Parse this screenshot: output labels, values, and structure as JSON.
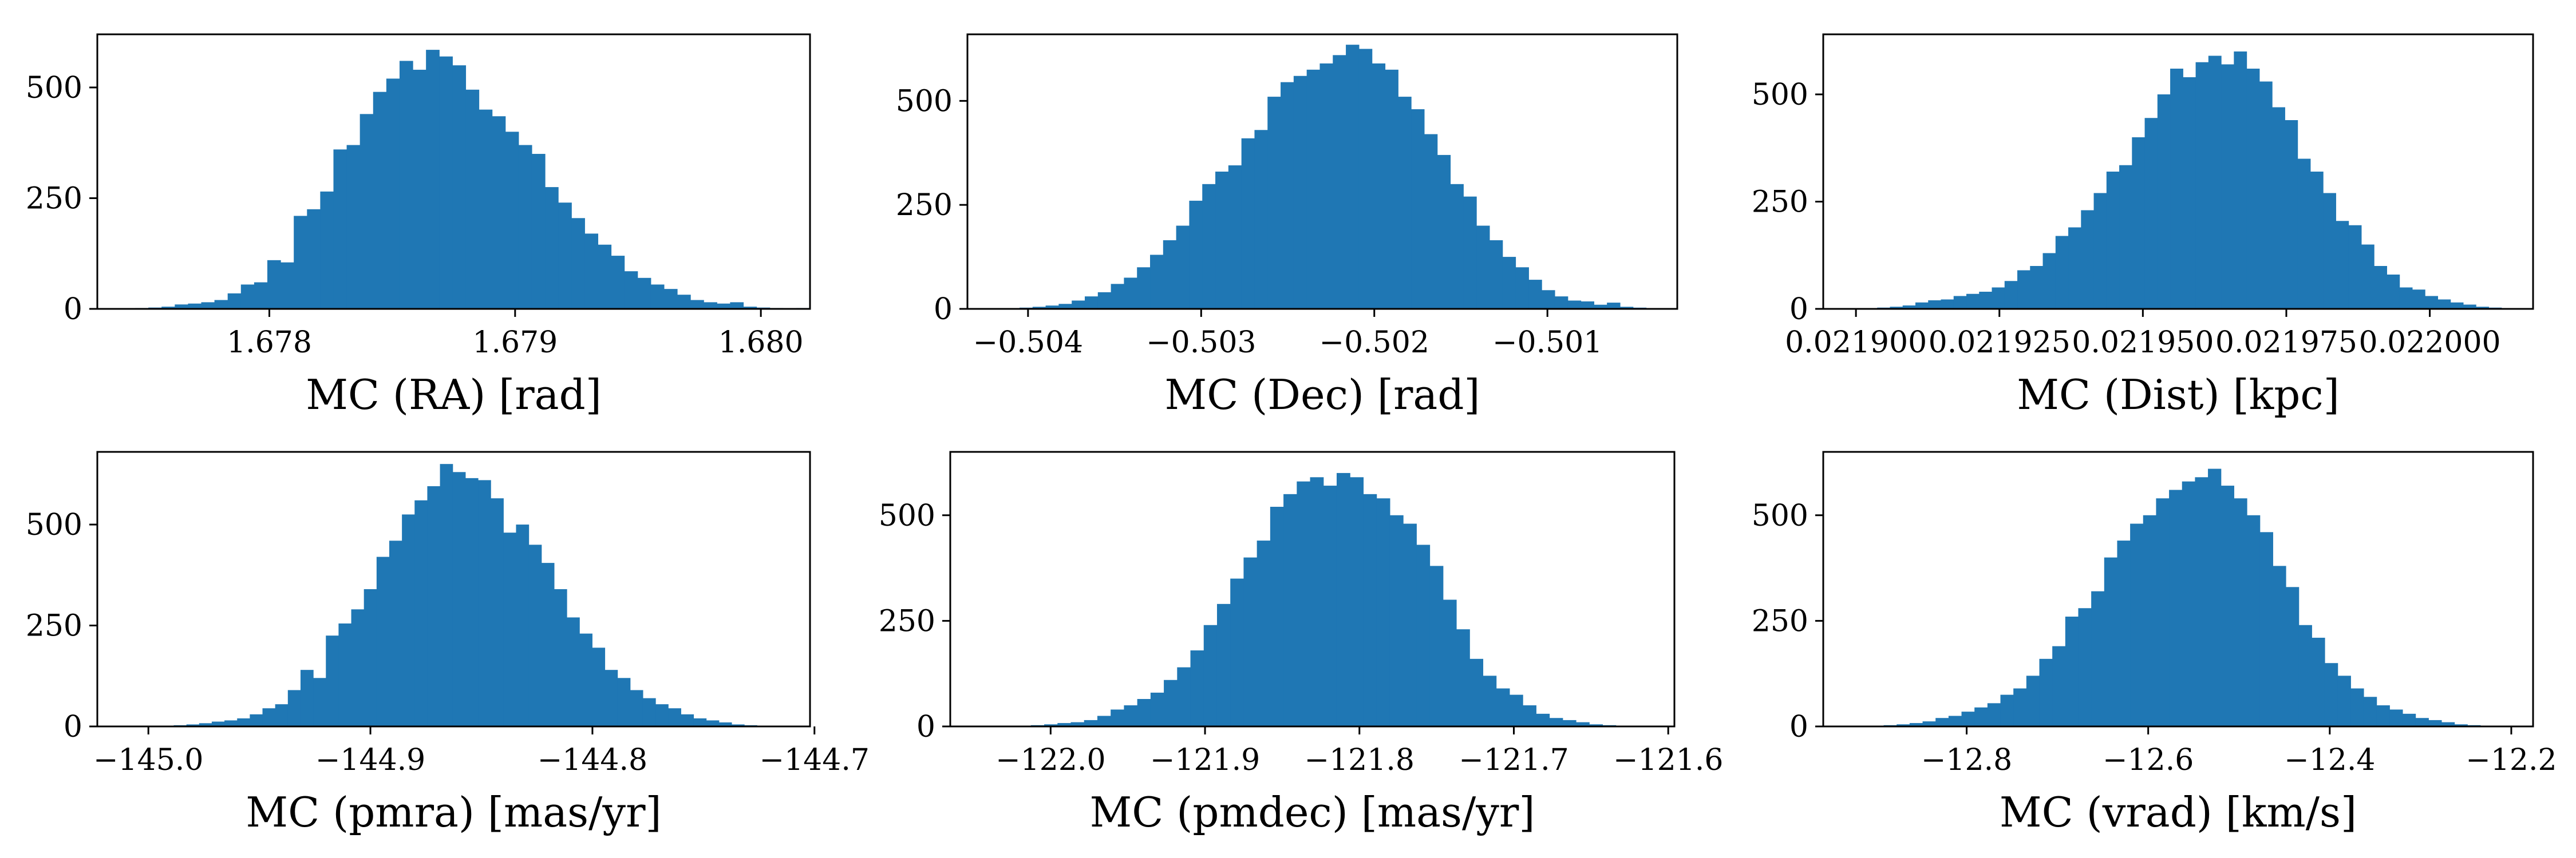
{
  "figure": {
    "bar_color": "#1f77b4",
    "background": "#ffffff"
  },
  "chart_data": [
    {
      "type": "bar",
      "xlabel": "MC (RA) [rad]",
      "ylabel": "",
      "xlim": [
        1.6773,
        1.6802
      ],
      "ylim": [
        0,
        620
      ],
      "xticks": [
        1.678,
        1.679,
        1.68
      ],
      "xtick_labels": [
        "1.678",
        "1.679",
        "1.680"
      ],
      "yticks": [
        0,
        250,
        500
      ],
      "ytick_labels": [
        "0",
        "250",
        "500"
      ],
      "bins": {
        "start": 1.6774,
        "width": 5.38e-05
      },
      "values": [
        1,
        2,
        3,
        5,
        10,
        12,
        15,
        20,
        35,
        55,
        60,
        110,
        105,
        210,
        225,
        265,
        360,
        370,
        440,
        490,
        520,
        560,
        540,
        585,
        570,
        550,
        495,
        450,
        435,
        400,
        370,
        350,
        275,
        240,
        205,
        170,
        145,
        120,
        85,
        70,
        55,
        45,
        32,
        20,
        15,
        12,
        15,
        5,
        3,
        2,
        1,
        2
      ]
    },
    {
      "type": "bar",
      "xlabel": "MC (Dec) [rad]",
      "ylabel": "",
      "xlim": [
        -0.50435,
        -0.50025
      ],
      "ylim": [
        0,
        660
      ],
      "xticks": [
        -0.504,
        -0.503,
        -0.502,
        -0.501
      ],
      "xtick_labels": [
        "−0.504",
        "−0.503",
        "−0.502",
        "−0.501"
      ],
      "yticks": [
        0,
        250,
        500
      ],
      "ytick_labels": [
        "0",
        "250",
        "500"
      ],
      "bins": {
        "start": -0.5042,
        "width": 7.54e-05
      },
      "values": [
        1,
        2,
        3,
        5,
        8,
        12,
        20,
        30,
        40,
        60,
        75,
        100,
        130,
        165,
        200,
        260,
        300,
        330,
        345,
        410,
        430,
        510,
        545,
        560,
        575,
        590,
        610,
        635,
        625,
        590,
        575,
        510,
        480,
        420,
        370,
        300,
        270,
        200,
        165,
        125,
        100,
        70,
        45,
        30,
        20,
        18,
        10,
        15,
        5,
        3,
        2,
        1
      ]
    },
    {
      "type": "bar",
      "xlabel": "MC (Dist) [kpc]",
      "ylabel": "",
      "xlim": [
        0.0218943,
        0.022018
      ],
      "ylim": [
        0,
        640
      ],
      "xticks": [
        0.0219,
        0.021925,
        0.02195,
        0.021975,
        0.022
      ],
      "xtick_labels": [
        "0.021900",
        "0.021925",
        "0.021950",
        "0.021975",
        "0.022000"
      ],
      "yticks": [
        0,
        250,
        500
      ],
      "ytick_labels": [
        "0",
        "250",
        "500"
      ],
      "bins": {
        "start": 0.02189926,
        "width": 2.22e-06
      },
      "values": [
        1,
        2,
        3,
        5,
        8,
        15,
        20,
        22,
        30,
        35,
        40,
        50,
        65,
        90,
        100,
        130,
        170,
        190,
        230,
        270,
        320,
        335,
        400,
        445,
        500,
        560,
        540,
        575,
        590,
        570,
        600,
        560,
        530,
        470,
        440,
        350,
        320,
        270,
        205,
        195,
        150,
        100,
        80,
        50,
        45,
        30,
        22,
        15,
        10,
        5,
        3,
        2,
        1,
        1
      ]
    },
    {
      "type": "bar",
      "xlabel": "MC (pmra) [mas/yr]",
      "ylabel": "",
      "xlim": [
        -145.023,
        -144.702
      ],
      "ylim": [
        0,
        680
      ],
      "xticks": [
        -145.0,
        -144.9,
        -144.8,
        -144.7
      ],
      "xtick_labels": [
        "−145.0",
        "−144.9",
        "−144.8",
        "−144.7"
      ],
      "yticks": [
        0,
        250,
        500
      ],
      "ytick_labels": [
        "0",
        "250",
        "500"
      ],
      "bins": {
        "start": -145.0,
        "width": 0.00571
      },
      "values": [
        1,
        2,
        3,
        5,
        8,
        12,
        15,
        20,
        30,
        45,
        55,
        90,
        140,
        120,
        225,
        255,
        290,
        340,
        420,
        460,
        525,
        560,
        595,
        650,
        630,
        615,
        610,
        565,
        480,
        500,
        450,
        405,
        340,
        270,
        230,
        195,
        140,
        120,
        90,
        70,
        55,
        45,
        30,
        20,
        15,
        10,
        5,
        3,
        2,
        1
      ]
    },
    {
      "type": "bar",
      "xlabel": "MC (pmdec) [mas/yr]",
      "ylabel": "",
      "xlim": [
        -122.065,
        -121.596
      ],
      "ylim": [
        0,
        650
      ],
      "xticks": [
        -122.0,
        -121.9,
        -121.8,
        -121.7,
        -121.6
      ],
      "xtick_labels": [
        "−122.0",
        "−121.9",
        "−121.8",
        "−121.7",
        "−121.6"
      ],
      "yticks": [
        0,
        250,
        500
      ],
      "ytick_labels": [
        "0",
        "250",
        "500"
      ],
      "bins": {
        "start": -122.03,
        "width": 0.00861
      },
      "values": [
        1,
        2,
        3,
        5,
        8,
        10,
        15,
        25,
        40,
        50,
        65,
        80,
        110,
        140,
        180,
        240,
        290,
        350,
        400,
        440,
        520,
        550,
        580,
        590,
        570,
        600,
        590,
        550,
        540,
        500,
        480,
        430,
        380,
        300,
        230,
        160,
        120,
        90,
        75,
        50,
        30,
        20,
        15,
        10,
        5,
        3,
        2,
        1
      ]
    },
    {
      "type": "bar",
      "xlabel": "MC (vrad) [km/s]",
      "ylabel": "",
      "xlim": [
        -12.958,
        -12.176
      ],
      "ylim": [
        0,
        650
      ],
      "xticks": [
        -12.8,
        -12.6,
        -12.4,
        -12.2
      ],
      "xtick_labels": [
        "−12.8",
        "−12.6",
        "−12.4",
        "−12.2"
      ],
      "yticks": [
        0,
        250,
        500
      ],
      "ytick_labels": [
        "0",
        "250",
        "500"
      ],
      "bins": {
        "start": -12.92,
        "width": 0.01429
      },
      "values": [
        1,
        2,
        3,
        5,
        8,
        12,
        20,
        25,
        35,
        45,
        55,
        75,
        90,
        120,
        160,
        190,
        260,
        280,
        320,
        400,
        440,
        480,
        500,
        540,
        560,
        580,
        590,
        610,
        570,
        540,
        500,
        460,
        380,
        330,
        240,
        210,
        150,
        120,
        90,
        70,
        50,
        40,
        30,
        20,
        15,
        10,
        5,
        3,
        2,
        1
      ]
    }
  ]
}
